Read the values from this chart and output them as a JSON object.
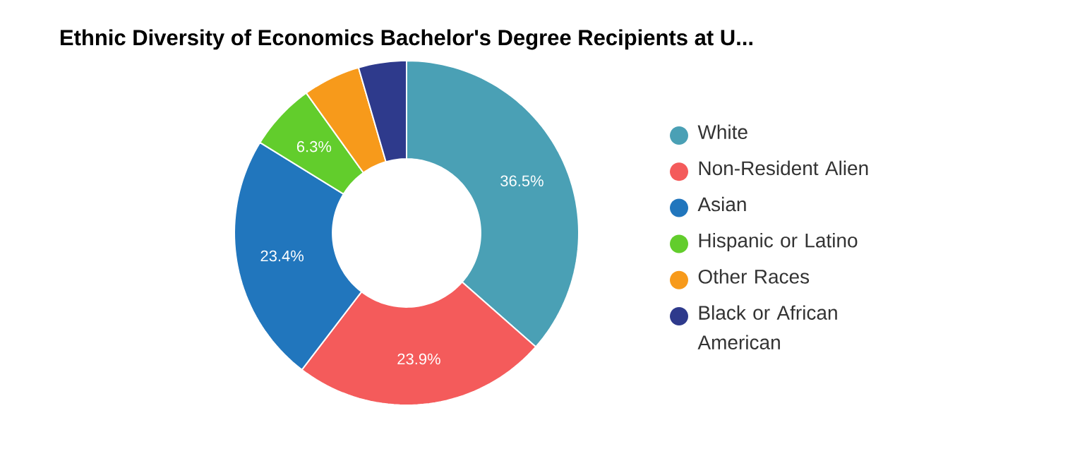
{
  "chart_data": {
    "type": "donut",
    "title": "Ethnic Diversity of Economics Bachelor's Degree Recipients at U...",
    "categories": [
      "White",
      "Non-Resident Alien",
      "Asian",
      "Hispanic or Latino",
      "Other Races",
      "Black or African American"
    ],
    "values": [
      36.5,
      23.9,
      23.4,
      6.3,
      5.4,
      4.5
    ],
    "colors": [
      "#4aa0b5",
      "#f45b5b",
      "#2176bd",
      "#62cd2c",
      "#f79a1b",
      "#2e3a8c"
    ],
    "value_labels": [
      "36.5%",
      "23.9%",
      "23.4%",
      "6.3%",
      null,
      null
    ],
    "legend": "right"
  }
}
